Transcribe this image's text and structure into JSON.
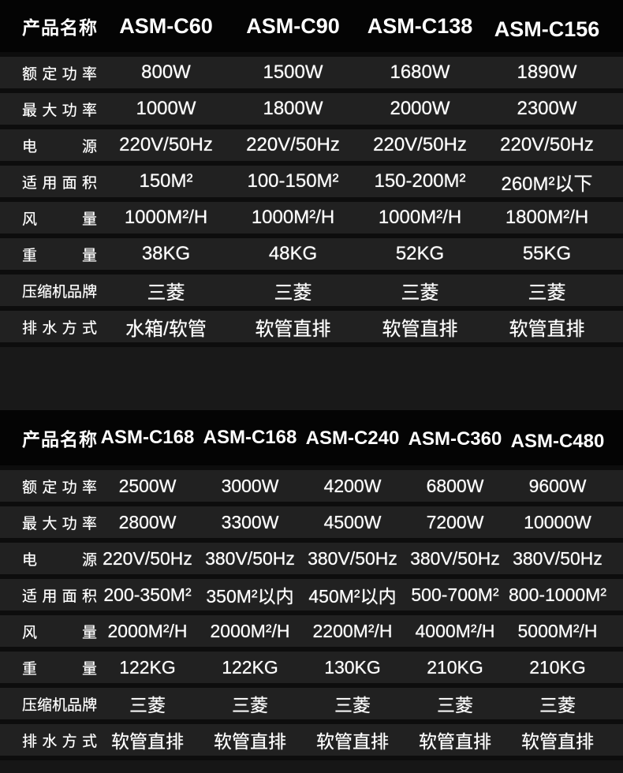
{
  "colors": {
    "header_bg": "#040404",
    "band_bg": "#212121",
    "gap_bg": "#0d0d0d",
    "spacer_bg": "#191919",
    "text": "#ffffff"
  },
  "tables": [
    {
      "header": {
        "label": "产品名称",
        "models": [
          "ASM-C60",
          "ASM-C90",
          "ASM-C138",
          "ASM-C156"
        ]
      },
      "rows": [
        {
          "label": "额定功率",
          "values": [
            "800W",
            "1500W",
            "1680W",
            "1890W"
          ]
        },
        {
          "label": "最大功率",
          "values": [
            "1000W",
            "1800W",
            "2000W",
            "2300W"
          ]
        },
        {
          "label": "电源",
          "values": [
            "220V/50Hz",
            "220V/50Hz",
            "220V/50Hz",
            "220V/50Hz"
          ]
        },
        {
          "label": "适用面积",
          "values": [
            "150M²",
            "100-150M²",
            "150-200M²",
            "260M²以下"
          ]
        },
        {
          "label": "风量",
          "values": [
            "1000M²/H",
            "1000M²/H",
            "1000M²/H",
            "1800M²/H"
          ]
        },
        {
          "label": "重量",
          "values": [
            "38KG",
            "48KG",
            "52KG",
            "55KG"
          ]
        },
        {
          "label": "压缩机品牌",
          "values": [
            "三菱",
            "三菱",
            "三菱",
            "三菱"
          ]
        },
        {
          "label": "排水方式",
          "values": [
            "水箱/软管",
            "软管直排",
            "软管直排",
            "软管直排"
          ]
        }
      ]
    },
    {
      "header": {
        "label": "产品名称",
        "models": [
          "ASM-C168",
          "ASM-C168",
          "ASM-C240",
          "ASM-C360",
          "ASM-C480"
        ]
      },
      "rows": [
        {
          "label": "额定功率",
          "values": [
            "2500W",
            "3000W",
            "4200W",
            "6800W",
            "9600W"
          ]
        },
        {
          "label": "最大功率",
          "values": [
            "2800W",
            "3300W",
            "4500W",
            "7200W",
            "10000W"
          ]
        },
        {
          "label": "电源",
          "values": [
            "220V/50Hz",
            "380V/50Hz",
            "380V/50Hz",
            "380V/50Hz",
            "380V/50Hz"
          ]
        },
        {
          "label": "适用面积",
          "values": [
            "200-350M²",
            "350M²以内",
            "450M²以内",
            "500-700M²",
            "800-1000M²"
          ]
        },
        {
          "label": "风量",
          "values": [
            "2000M²/H",
            "2000M²/H",
            "2200M²/H",
            "4000M²/H",
            "5000M²/H"
          ]
        },
        {
          "label": "重量",
          "values": [
            "122KG",
            "122KG",
            "130KG",
            "210KG",
            "210KG"
          ]
        },
        {
          "label": "压缩机品牌",
          "values": [
            "三菱",
            "三菱",
            "三菱",
            "三菱",
            "三菱"
          ]
        },
        {
          "label": "排水方式",
          "values": [
            "软管直排",
            "软管直排",
            "软管直排",
            "软管直排",
            "软管直排"
          ]
        }
      ]
    }
  ]
}
